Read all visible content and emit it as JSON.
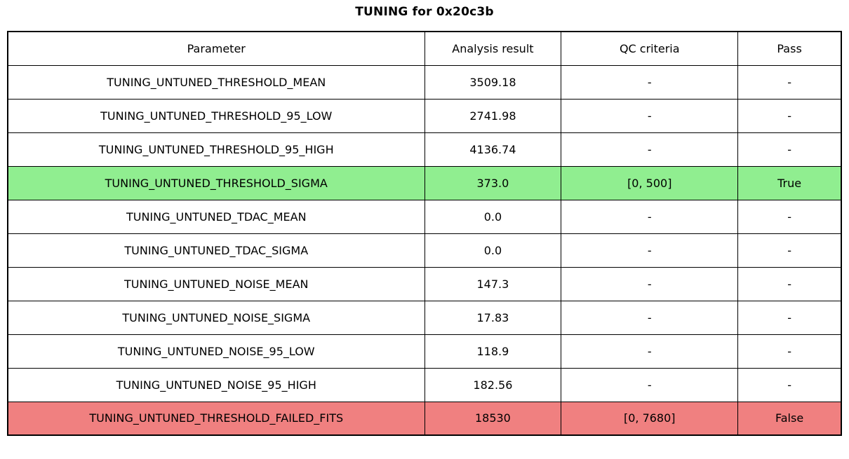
{
  "title": "TUNING for 0x20c3b",
  "colors": {
    "pass_row": "#90ee90",
    "fail_row": "#f08080",
    "border": "#000000",
    "background": "#ffffff"
  },
  "chart_data": {
    "type": "table",
    "title": "TUNING for 0x20c3b",
    "columns": [
      "Parameter",
      "Analysis result",
      "QC criteria",
      "Pass"
    ],
    "rows": [
      {
        "parameter": "TUNING_UNTUNED_THRESHOLD_MEAN",
        "result": "3509.18",
        "qc": "-",
        "pass": "-",
        "status": "none"
      },
      {
        "parameter": "TUNING_UNTUNED_THRESHOLD_95_LOW",
        "result": "2741.98",
        "qc": "-",
        "pass": "-",
        "status": "none"
      },
      {
        "parameter": "TUNING_UNTUNED_THRESHOLD_95_HIGH",
        "result": "4136.74",
        "qc": "-",
        "pass": "-",
        "status": "none"
      },
      {
        "parameter": "TUNING_UNTUNED_THRESHOLD_SIGMA",
        "result": "373.0",
        "qc": "[0, 500]",
        "pass": "True",
        "status": "pass"
      },
      {
        "parameter": "TUNING_UNTUNED_TDAC_MEAN",
        "result": "0.0",
        "qc": "-",
        "pass": "-",
        "status": "none"
      },
      {
        "parameter": "TUNING_UNTUNED_TDAC_SIGMA",
        "result": "0.0",
        "qc": "-",
        "pass": "-",
        "status": "none"
      },
      {
        "parameter": "TUNING_UNTUNED_NOISE_MEAN",
        "result": "147.3",
        "qc": "-",
        "pass": "-",
        "status": "none"
      },
      {
        "parameter": "TUNING_UNTUNED_NOISE_SIGMA",
        "result": "17.83",
        "qc": "-",
        "pass": "-",
        "status": "none"
      },
      {
        "parameter": "TUNING_UNTUNED_NOISE_95_LOW",
        "result": "118.9",
        "qc": "-",
        "pass": "-",
        "status": "none"
      },
      {
        "parameter": "TUNING_UNTUNED_NOISE_95_HIGH",
        "result": "182.56",
        "qc": "-",
        "pass": "-",
        "status": "none"
      },
      {
        "parameter": "TUNING_UNTUNED_THRESHOLD_FAILED_FITS",
        "result": "18530",
        "qc": "[0, 7680]",
        "pass": "False",
        "status": "fail"
      }
    ]
  }
}
